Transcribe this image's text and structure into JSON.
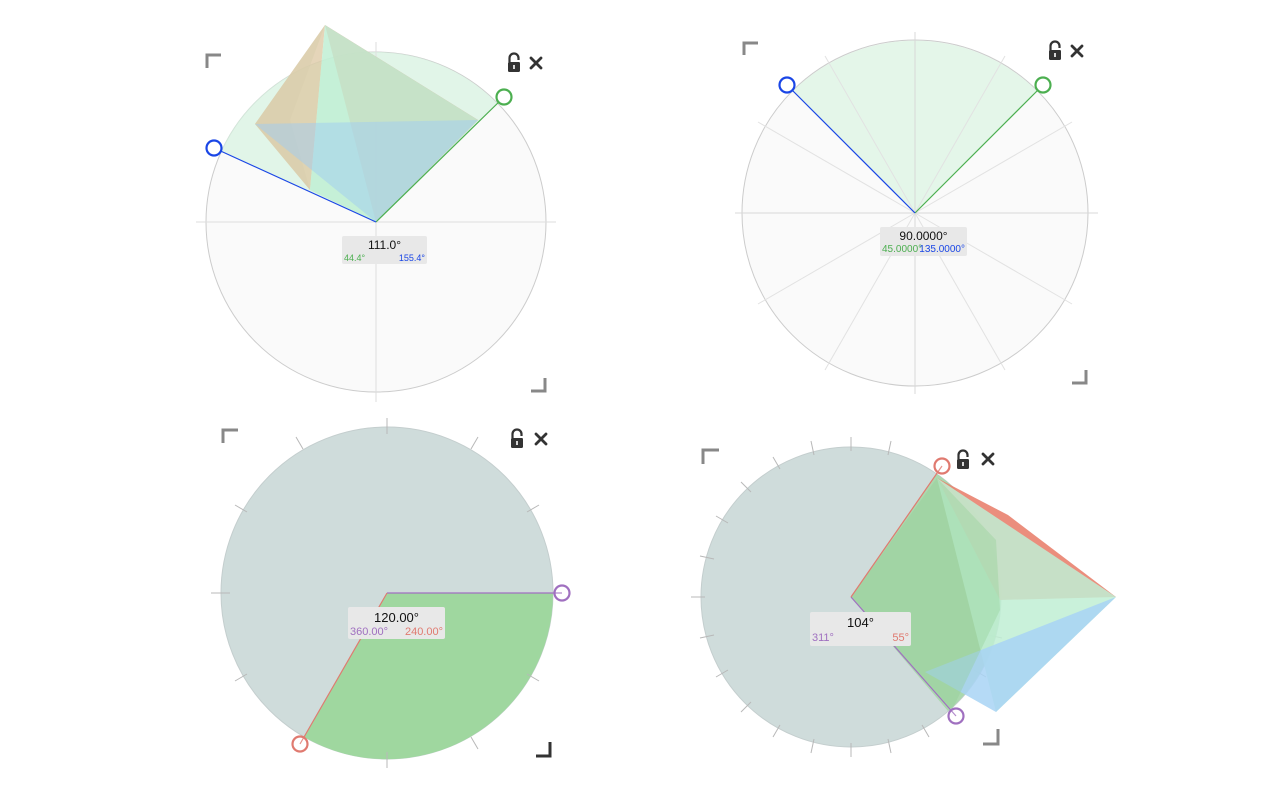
{
  "colors": {
    "green": "#4caf50",
    "blue": "#1a46e6",
    "purple": "#a070c0",
    "salmon": "#e07a70",
    "dial_fill": "#fafafa",
    "dial_gray": "#cfdcdb",
    "fill_green": "#7fd07f",
    "fill_mint": "#c8efd6",
    "icon": "#333333"
  },
  "protractors": [
    {
      "name": "protractor-1",
      "angle_label": "111.0°",
      "start_label": "44.4°",
      "end_label": "155.4°",
      "start_angle_deg": 44.4,
      "end_angle_deg": 155.4,
      "start_color": "green",
      "end_color": "blue",
      "locked": false,
      "icons": [
        "unlock-icon",
        "close-icon"
      ]
    },
    {
      "name": "protractor-2",
      "angle_label": "90.0000°",
      "start_label": "45.0000°",
      "end_label": "135.0000°",
      "start_angle_deg": 45,
      "end_angle_deg": 135,
      "start_color": "green",
      "end_color": "blue",
      "locked": false,
      "icons": [
        "unlock-icon",
        "close-icon"
      ]
    },
    {
      "name": "protractor-3",
      "angle_label": "120.00°",
      "start_label": "360.00°",
      "end_label": "240.00°",
      "start_angle_deg": 360,
      "end_angle_deg": 240,
      "start_color": "purple",
      "end_color": "salmon",
      "locked": false,
      "icons": [
        "unlock-icon",
        "close-icon"
      ]
    },
    {
      "name": "protractor-4",
      "angle_label": "104°",
      "start_label": "311°",
      "end_label": "55°",
      "start_angle_deg": 311,
      "end_angle_deg": 55,
      "start_color": "purple",
      "end_color": "salmon",
      "locked": false,
      "icons": [
        "unlock-icon",
        "close-icon"
      ]
    }
  ]
}
